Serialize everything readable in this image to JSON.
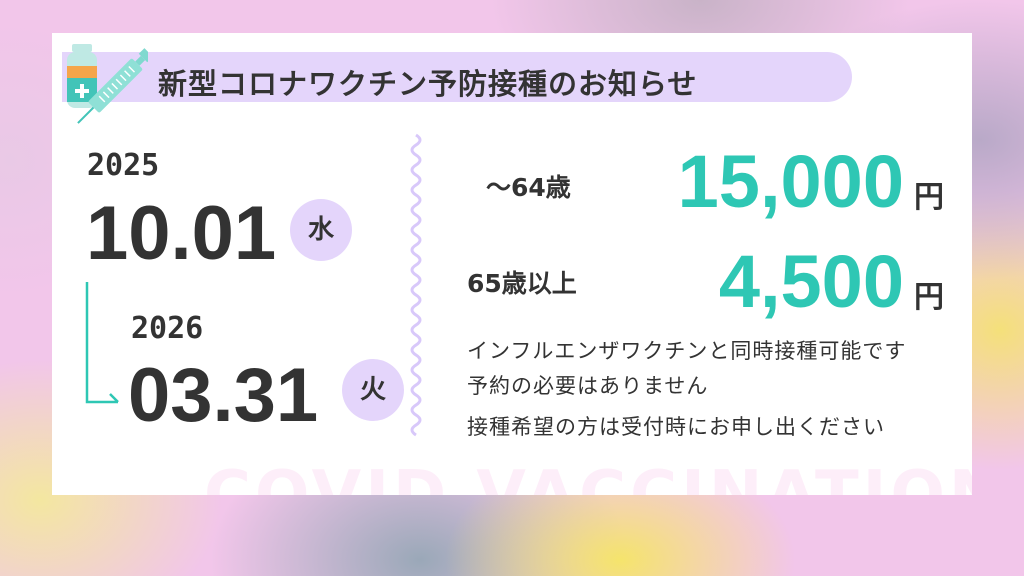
{
  "title": "新型コロナワクチン予防接種のお知らせ",
  "period": {
    "start_year": "2025",
    "start_date": "10.01",
    "start_dow": "水",
    "end_year": "2026",
    "end_date": "03.31",
    "end_dow": "火"
  },
  "prices": [
    {
      "label": "～64歳",
      "amount": "15,000",
      "unit": "円"
    },
    {
      "label": "65歳以上",
      "amount": "4,500",
      "unit": "円"
    }
  ],
  "notes": [
    "インフルエンザワクチンと同時接種可能です",
    "予約の必要はありません",
    "接種希望の方は受付時にお申し出ください"
  ],
  "watermark": "COVID VACCINATION",
  "icons": [
    "vaccine-vial-icon",
    "syringe-icon"
  ],
  "colors": {
    "accent": "#2ec7b4",
    "lavender": "#e4d5fb",
    "text": "#333333"
  }
}
